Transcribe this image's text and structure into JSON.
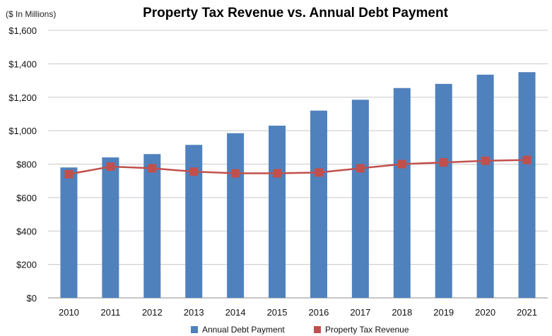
{
  "chart_data": {
    "type": "bar",
    "title": "Property Tax Revenue vs. Annual Debt Payment",
    "unit_label": "($ In Millions)",
    "categories": [
      "2010",
      "2011",
      "2012",
      "2013",
      "2014",
      "2015",
      "2016",
      "2017",
      "2018",
      "2019",
      "2020",
      "2021"
    ],
    "series": [
      {
        "name": "Annual Debt Payment",
        "type": "bar",
        "color": "#4F81BD",
        "values": [
          780,
          840,
          860,
          915,
          985,
          1030,
          1120,
          1185,
          1255,
          1280,
          1335,
          1350
        ]
      },
      {
        "name": "Property Tax Revenue",
        "type": "line",
        "color": "#C0504D",
        "values": [
          740,
          785,
          775,
          755,
          745,
          745,
          750,
          775,
          800,
          810,
          820,
          825
        ]
      }
    ],
    "ylim": [
      0,
      1600
    ],
    "yticks": [
      0,
      200,
      400,
      600,
      800,
      1000,
      1200,
      1400,
      1600
    ],
    "ytick_labels": [
      "$0",
      "$200",
      "$400",
      "$600",
      "$800",
      "$1,000",
      "$1,200",
      "$1,400",
      "$1,600"
    ],
    "grid": true,
    "legend_position": "bottom"
  }
}
